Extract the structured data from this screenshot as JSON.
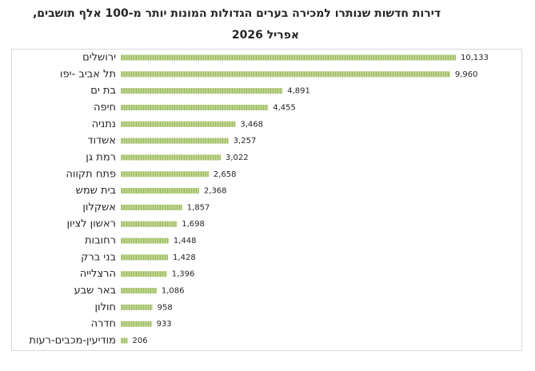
{
  "chart_data": {
    "type": "bar",
    "orientation": "horizontal",
    "title": "דירות חדשות שנותרו למכירה בערים הגדולות המונות יותר מ-100 אלף תושבים,",
    "subtitle": "אפריל 2026",
    "categories": [
      "ירושלים",
      "תל אביב -יפו",
      "בת ים",
      "חיפה",
      "נתניה",
      "אשדוד",
      "רמת גן",
      "פתח תקווה",
      "בית שמש",
      "אשקלון",
      "ראשון לציון",
      "רחובות",
      "בני ברק",
      "הרצלייה",
      "באר שבע",
      "חולון",
      "חדרה",
      "מודיעין-מכבים-רעות"
    ],
    "values": [
      10133,
      9960,
      4891,
      4455,
      3468,
      3257,
      3022,
      2658,
      2368,
      1857,
      1698,
      1448,
      1428,
      1396,
      1086,
      958,
      933,
      206
    ],
    "value_labels": [
      "10,133",
      "9,960",
      "4,891",
      "4,455",
      "3,468",
      "3,257",
      "3,022",
      "2,658",
      "2,368",
      "1,857",
      "1,698",
      "1,448",
      "1,428",
      "1,396",
      "1,086",
      "958",
      "933",
      "206"
    ],
    "color": "#9bbb59"
  }
}
